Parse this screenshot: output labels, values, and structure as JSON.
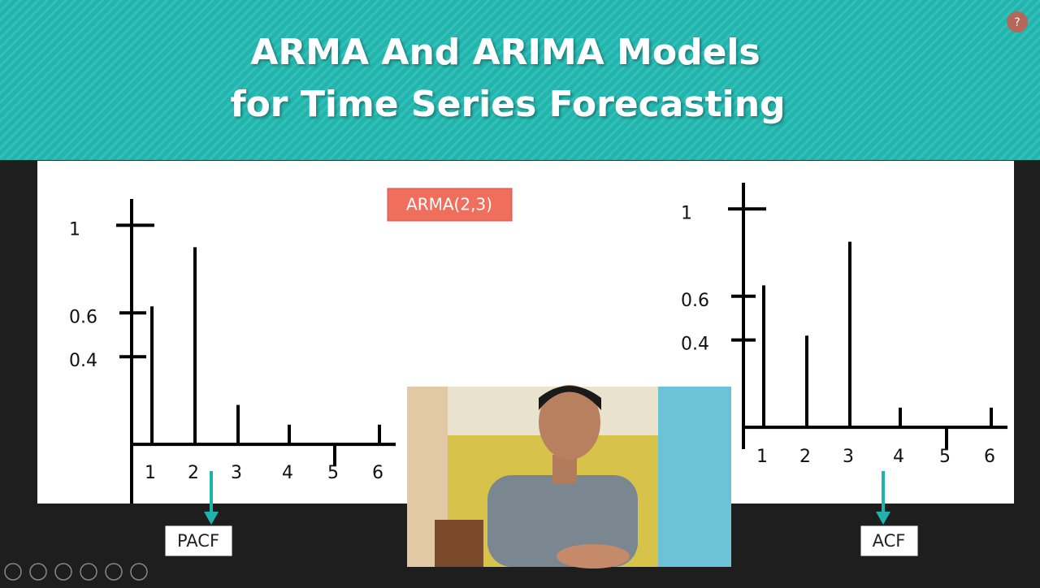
{
  "slide": {
    "title_line1": "ARMA And ARIMA Models",
    "title_line2": "for Time Series Forecasting",
    "badge": "ARMA(2,3)",
    "help": "?"
  },
  "chart_data": [
    {
      "type": "bar",
      "label": "PACF",
      "categories": [
        "1",
        "2",
        "3",
        "4",
        "5",
        "6"
      ],
      "values": [
        0.63,
        0.9,
        0.18,
        0.09,
        -0.1,
        0.09
      ],
      "color": "#000000",
      "ylim": [
        -0.27,
        1.12
      ],
      "yticks": [
        0.4,
        0.6,
        1
      ]
    },
    {
      "type": "bar",
      "label": "ACF",
      "categories": [
        "1",
        "2",
        "3",
        "4",
        "5",
        "6"
      ],
      "values": [
        0.65,
        0.42,
        0.85,
        0.09,
        -0.1,
        0.09
      ],
      "color": "#000000",
      "ylim": [
        -0.1,
        1.12
      ],
      "yticks": [
        0.4,
        0.6,
        1
      ]
    }
  ]
}
